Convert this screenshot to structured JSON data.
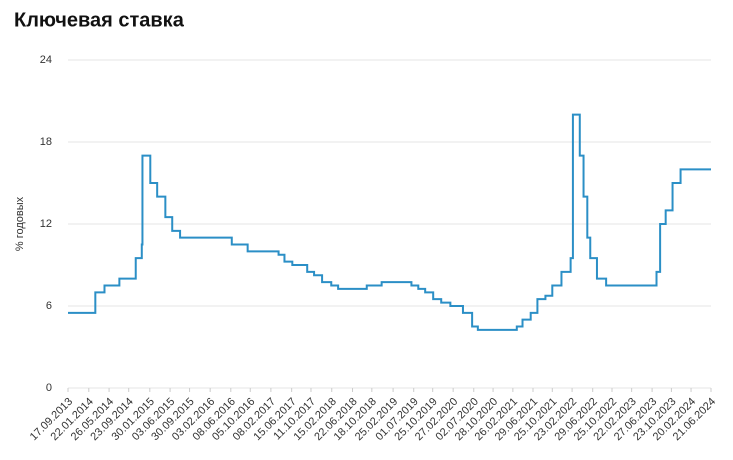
{
  "chart_data": {
    "type": "line",
    "step": true,
    "title": "Ключевая ставка",
    "y_label": "% годовых",
    "x": [
      "2013-09-17",
      "2014-03-03",
      "2014-04-28",
      "2014-07-28",
      "2014-11-05",
      "2014-12-12",
      "2014-12-16",
      "2015-02-02",
      "2015-03-16",
      "2015-05-05",
      "2015-06-16",
      "2015-08-03",
      "2016-06-14",
      "2016-09-19",
      "2017-03-27",
      "2017-05-02",
      "2017-06-19",
      "2017-09-18",
      "2017-10-30",
      "2017-12-18",
      "2018-02-12",
      "2018-03-26",
      "2018-09-17",
      "2018-12-17",
      "2019-06-17",
      "2019-07-29",
      "2019-09-09",
      "2019-10-28",
      "2019-12-16",
      "2020-02-10",
      "2020-04-27",
      "2020-06-22",
      "2020-07-27",
      "2021-03-22",
      "2021-04-26",
      "2021-06-15",
      "2021-07-26",
      "2021-09-13",
      "2021-10-25",
      "2021-12-20",
      "2022-02-14",
      "2022-02-28",
      "2022-04-11",
      "2022-05-04",
      "2022-05-27",
      "2022-06-14",
      "2022-07-25",
      "2022-09-19",
      "2023-07-24",
      "2023-08-15",
      "2023-09-18",
      "2023-10-30",
      "2023-12-18",
      "2024-06-21"
    ],
    "series": [
      {
        "name": "Ключевая ставка",
        "color": "#2b8fc6",
        "values": [
          5.5,
          7,
          7.5,
          8,
          9.5,
          10.5,
          17,
          15,
          14,
          12.5,
          11.5,
          11,
          10.5,
          10,
          9.75,
          9.25,
          9,
          8.5,
          8.25,
          7.75,
          7.5,
          7.25,
          7.5,
          7.75,
          7.5,
          7.25,
          7,
          6.5,
          6.25,
          6,
          5.5,
          4.5,
          4.25,
          4.5,
          5,
          5.5,
          6.5,
          6.75,
          7.5,
          8.5,
          9.5,
          20,
          17,
          14,
          11,
          9.5,
          8,
          7.5,
          8.5,
          12,
          13,
          15,
          16,
          16
        ]
      }
    ],
    "xlim": [
      "2013-09-17",
      "2024-06-21"
    ],
    "xticks": [
      {
        "value": "2013-09-17",
        "label": "17.09.2013"
      },
      {
        "value": "2014-01-22",
        "label": "22.01.2014"
      },
      {
        "value": "2014-05-26",
        "label": "26.05.2014"
      },
      {
        "value": "2014-09-23",
        "label": "23.09.2014"
      },
      {
        "value": "2015-01-30",
        "label": "30.01.2015"
      },
      {
        "value": "2015-06-03",
        "label": "03.06.2015"
      },
      {
        "value": "2015-09-30",
        "label": "30.09.2015"
      },
      {
        "value": "2016-02-03",
        "label": "03.02.2016"
      },
      {
        "value": "2016-06-08",
        "label": "08.06.2016"
      },
      {
        "value": "2016-10-05",
        "label": "05.10.2016"
      },
      {
        "value": "2017-02-08",
        "label": "08.02.2017"
      },
      {
        "value": "2017-06-15",
        "label": "15.06.2017"
      },
      {
        "value": "2017-10-11",
        "label": "11.10.2017"
      },
      {
        "value": "2018-02-15",
        "label": "15.02.2018"
      },
      {
        "value": "2018-06-22",
        "label": "22.06.2018"
      },
      {
        "value": "2018-10-18",
        "label": "18.10.2018"
      },
      {
        "value": "2019-02-25",
        "label": "25.02.2019"
      },
      {
        "value": "2019-07-01",
        "label": "01.07.2019"
      },
      {
        "value": "2019-10-25",
        "label": "25.10.2019"
      },
      {
        "value": "2020-02-27",
        "label": "27.02.2020"
      },
      {
        "value": "2020-07-02",
        "label": "02.07.2020"
      },
      {
        "value": "2020-10-28",
        "label": "28.10.2020"
      },
      {
        "value": "2021-02-26",
        "label": "26.02.2021"
      },
      {
        "value": "2021-06-29",
        "label": "29.06.2021"
      },
      {
        "value": "2021-10-25",
        "label": "25.10.2021"
      },
      {
        "value": "2022-02-23",
        "label": "23.02.2022"
      },
      {
        "value": "2022-06-29",
        "label": "29.06.2022"
      },
      {
        "value": "2022-10-25",
        "label": "25.10.2022"
      },
      {
        "value": "2023-02-22",
        "label": "22.02.2023"
      },
      {
        "value": "2023-06-27",
        "label": "27.06.2023"
      },
      {
        "value": "2023-10-23",
        "label": "23.10.2023"
      },
      {
        "value": "2024-02-20",
        "label": "20.02.2024"
      },
      {
        "value": "2024-06-21",
        "label": "21.06.2024"
      }
    ],
    "ylim": [
      0,
      24
    ],
    "yticks": [
      0,
      6,
      12,
      18,
      24
    ],
    "grid": true
  }
}
